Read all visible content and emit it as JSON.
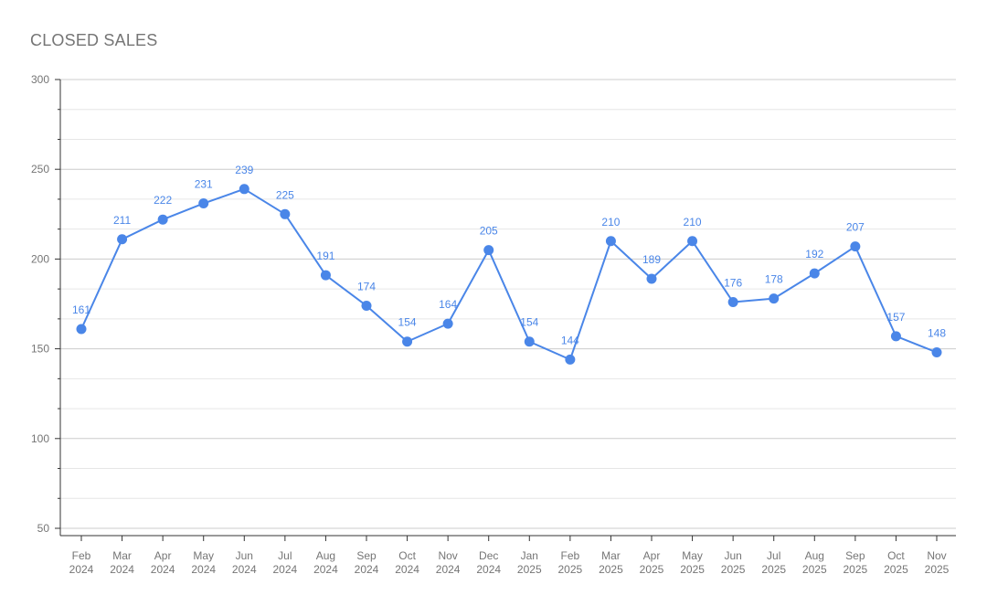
{
  "chart_data": {
    "type": "line",
    "title": "CLOSED SALES",
    "xlabel": "",
    "ylabel": "",
    "ylim": [
      50,
      300
    ],
    "yticks": [
      50,
      100,
      150,
      200,
      250,
      300
    ],
    "grid": true,
    "legend": "none",
    "color": "#4a86e8",
    "categories": [
      [
        "Feb",
        "2024"
      ],
      [
        "Mar",
        "2024"
      ],
      [
        "Apr",
        "2024"
      ],
      [
        "May",
        "2024"
      ],
      [
        "Jun",
        "2024"
      ],
      [
        "Jul",
        "2024"
      ],
      [
        "Aug",
        "2024"
      ],
      [
        "Sep",
        "2024"
      ],
      [
        "Oct",
        "2024"
      ],
      [
        "Nov",
        "2024"
      ],
      [
        "Dec",
        "2024"
      ],
      [
        "Jan",
        "2025"
      ],
      [
        "Feb",
        "2025"
      ],
      [
        "Mar",
        "2025"
      ],
      [
        "Apr",
        "2025"
      ],
      [
        "May",
        "2025"
      ],
      [
        "Jun",
        "2025"
      ],
      [
        "Jul",
        "2025"
      ],
      [
        "Aug",
        "2025"
      ],
      [
        "Sep",
        "2025"
      ],
      [
        "Oct",
        "2025"
      ],
      [
        "Nov",
        "2025"
      ]
    ],
    "series": [
      {
        "values": [
          161,
          211,
          222,
          231,
          239,
          225,
          191,
          174,
          154,
          164,
          205,
          154,
          144,
          210,
          189,
          210,
          176,
          178,
          192,
          207,
          157,
          148
        ]
      }
    ]
  }
}
